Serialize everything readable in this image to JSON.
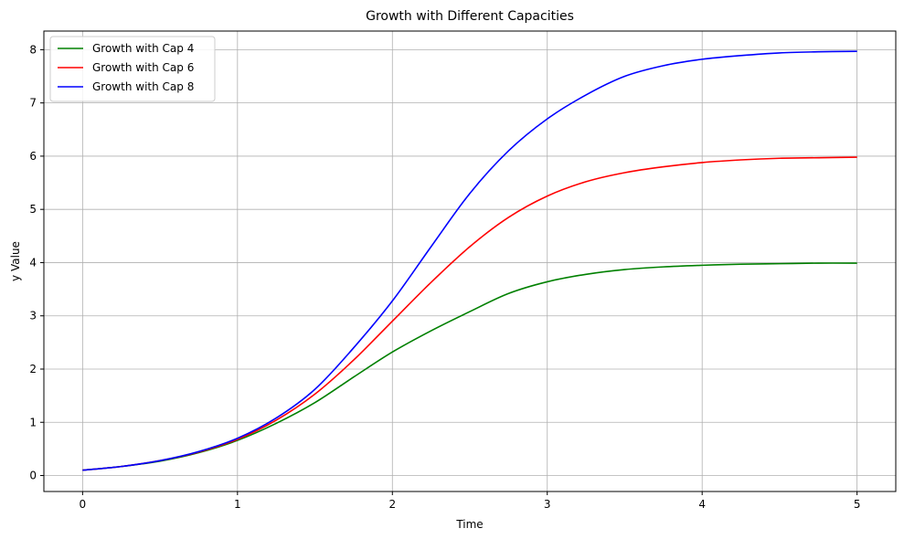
{
  "chart_data": {
    "type": "line",
    "title": "Growth with Different Capacities",
    "xlabel": "Time",
    "ylabel": "y Value",
    "xlim": [
      -0.25,
      5.25
    ],
    "ylim": [
      -0.3,
      8.35
    ],
    "xticks": [
      0,
      1,
      2,
      3,
      4,
      5
    ],
    "yticks": [
      0,
      1,
      2,
      3,
      4,
      5,
      6,
      7,
      8
    ],
    "grid": true,
    "legend_position": "top-left",
    "series": [
      {
        "name": "Growth with Cap 4",
        "color": "#008000",
        "x": [
          0,
          0.25,
          0.5,
          0.75,
          1.0,
          1.25,
          1.5,
          1.75,
          2.0,
          2.25,
          2.5,
          2.75,
          3.0,
          3.25,
          3.5,
          3.75,
          4.0,
          4.25,
          4.5,
          4.75,
          5.0
        ],
        "y": [
          0.1,
          0.17,
          0.27,
          0.43,
          0.66,
          0.98,
          1.37,
          1.85,
          2.32,
          2.72,
          3.08,
          3.42,
          3.64,
          3.78,
          3.87,
          3.92,
          3.95,
          3.97,
          3.98,
          3.99,
          3.99
        ]
      },
      {
        "name": "Growth with Cap 6",
        "color": "#ff0000",
        "x": [
          0,
          0.25,
          0.5,
          0.75,
          1.0,
          1.25,
          1.5,
          1.75,
          2.0,
          2.25,
          2.5,
          2.75,
          3.0,
          3.25,
          3.5,
          3.75,
          4.0,
          4.25,
          4.5,
          4.75,
          5.0
        ],
        "y": [
          0.1,
          0.17,
          0.28,
          0.44,
          0.68,
          1.04,
          1.53,
          2.17,
          2.9,
          3.63,
          4.3,
          4.85,
          5.25,
          5.52,
          5.69,
          5.8,
          5.88,
          5.93,
          5.96,
          5.97,
          5.98
        ]
      },
      {
        "name": "Growth with Cap 8",
        "color": "#0000ff",
        "x": [
          0,
          0.25,
          0.5,
          0.75,
          1.0,
          1.25,
          1.5,
          1.75,
          2.0,
          2.25,
          2.5,
          2.75,
          3.0,
          3.25,
          3.5,
          3.75,
          4.0,
          4.25,
          4.5,
          4.75,
          5.0
        ],
        "y": [
          0.1,
          0.17,
          0.28,
          0.45,
          0.7,
          1.08,
          1.62,
          2.4,
          3.28,
          4.3,
          5.3,
          6.1,
          6.7,
          7.15,
          7.5,
          7.7,
          7.82,
          7.89,
          7.94,
          7.96,
          7.97
        ]
      }
    ]
  }
}
